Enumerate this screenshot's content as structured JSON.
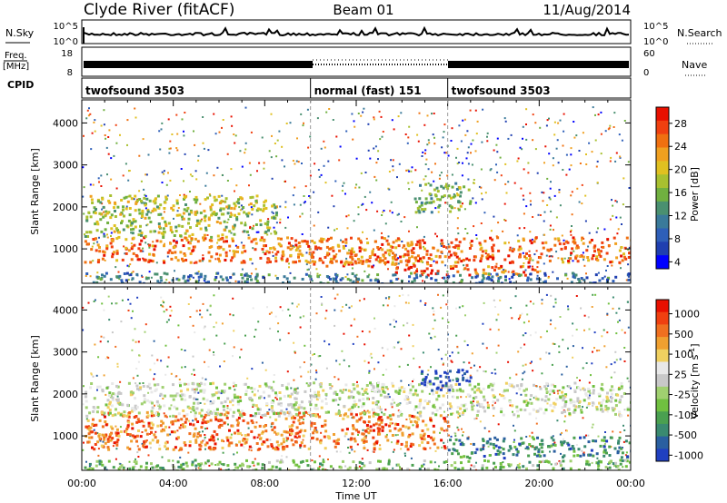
{
  "header": {
    "station": "Clyde River (fitACF)",
    "beam": "Beam 01",
    "date": "11/Aug/2014"
  },
  "panels": {
    "nsky": {
      "label": "N.Sky",
      "right_label": "N.Search",
      "left_ticks": [
        "10^5",
        "10^0"
      ],
      "right_ticks": [
        "10^5",
        "10^0"
      ]
    },
    "freq": {
      "label": "Freq.",
      "unit": "[MHz]",
      "right_label": "Nave",
      "left_ticks": [
        "18",
        "8"
      ],
      "right_ticks": [
        "60",
        "0"
      ]
    },
    "cpid": {
      "label": "CPID",
      "segments": [
        {
          "name": "twofsound 3503",
          "start_h": 0,
          "end_h": 10
        },
        {
          "name": "normal (fast) 151",
          "start_h": 10,
          "end_h": 16
        },
        {
          "name": "twofsound 3503",
          "start_h": 16,
          "end_h": 24
        }
      ]
    }
  },
  "chart_data": [
    {
      "type": "heatmap",
      "title": "",
      "xlabel": "",
      "ylabel": "Slant Range [km]",
      "xlim": [
        0,
        24
      ],
      "ylim": [
        180,
        4550
      ],
      "yticks": [
        "4000",
        "3000",
        "2000",
        "1000"
      ],
      "colorbar": {
        "label": "Power [dB]",
        "ticks": [
          "28",
          "24",
          "20",
          "16",
          "12",
          "8",
          "4"
        ],
        "colors": [
          "#0000ff",
          "#1f3fb0",
          "#2e5fb8",
          "#3a7a9a",
          "#4a9070",
          "#70b040",
          "#a8c030",
          "#e0c020",
          "#f0a020",
          "#f07010",
          "#f04010",
          "#e81000"
        ]
      },
      "bands": [
        {
          "x0": 0.1,
          "x1": 24,
          "y0": 700,
          "y1": 1300,
          "level": 9
        },
        {
          "x0": 0.1,
          "x1": 8.5,
          "y0": 1300,
          "y1": 2300,
          "level": 6
        },
        {
          "x0": 10,
          "x1": 16,
          "y0": 600,
          "y1": 900,
          "level": 9
        },
        {
          "x0": 13.5,
          "x1": 16,
          "y0": 400,
          "y1": 650,
          "level": 11
        },
        {
          "x0": 16,
          "x1": 20,
          "y0": 400,
          "y1": 650,
          "level": 9
        },
        {
          "x0": 14.5,
          "x1": 17,
          "y0": 1900,
          "y1": 2600,
          "level": 5
        },
        {
          "x0": 0.1,
          "x1": 24,
          "y0": 200,
          "y1": 450,
          "level": 3
        }
      ]
    },
    {
      "type": "heatmap",
      "title": "",
      "xlabel": "Time UT",
      "ylabel": "Slant Range [km]",
      "xlim": [
        0,
        24
      ],
      "ylim": [
        180,
        4550
      ],
      "yticks": [
        "4000",
        "3000",
        "2000",
        "1000"
      ],
      "xticks": [
        "00:00",
        "04:00",
        "08:00",
        "12:00",
        "16:00",
        "20:00",
        "00:00"
      ],
      "colorbar": {
        "label": "Velocity [m s",
        "label_sup": "-1",
        "label_end": "]",
        "ticks": [
          "1000",
          "500",
          "100",
          "25",
          "-25",
          "-100",
          "-500",
          "-1000"
        ],
        "colors": [
          "#2040c0",
          "#2a5fa0",
          "#3a8a70",
          "#4aa050",
          "#70c040",
          "#a0d070",
          "#c8c8c8",
          "#e8e8e8",
          "#f0d060",
          "#f0a030",
          "#f07020",
          "#f04010",
          "#e81000"
        ]
      },
      "bands": [
        {
          "x0": 0.1,
          "x1": 16,
          "y0": 700,
          "y1": 1600,
          "level": 10
        },
        {
          "x0": 0.1,
          "x1": 24,
          "y0": 1500,
          "y1": 2300,
          "level": 6
        },
        {
          "x0": 16,
          "x1": 24,
          "y0": 500,
          "y1": 1000,
          "level": 2
        },
        {
          "x0": 14.8,
          "x1": 17,
          "y0": 2100,
          "y1": 2600,
          "level": 0
        },
        {
          "x0": 0.1,
          "x1": 24,
          "y0": 200,
          "y1": 450,
          "level": 4
        }
      ]
    }
  ]
}
